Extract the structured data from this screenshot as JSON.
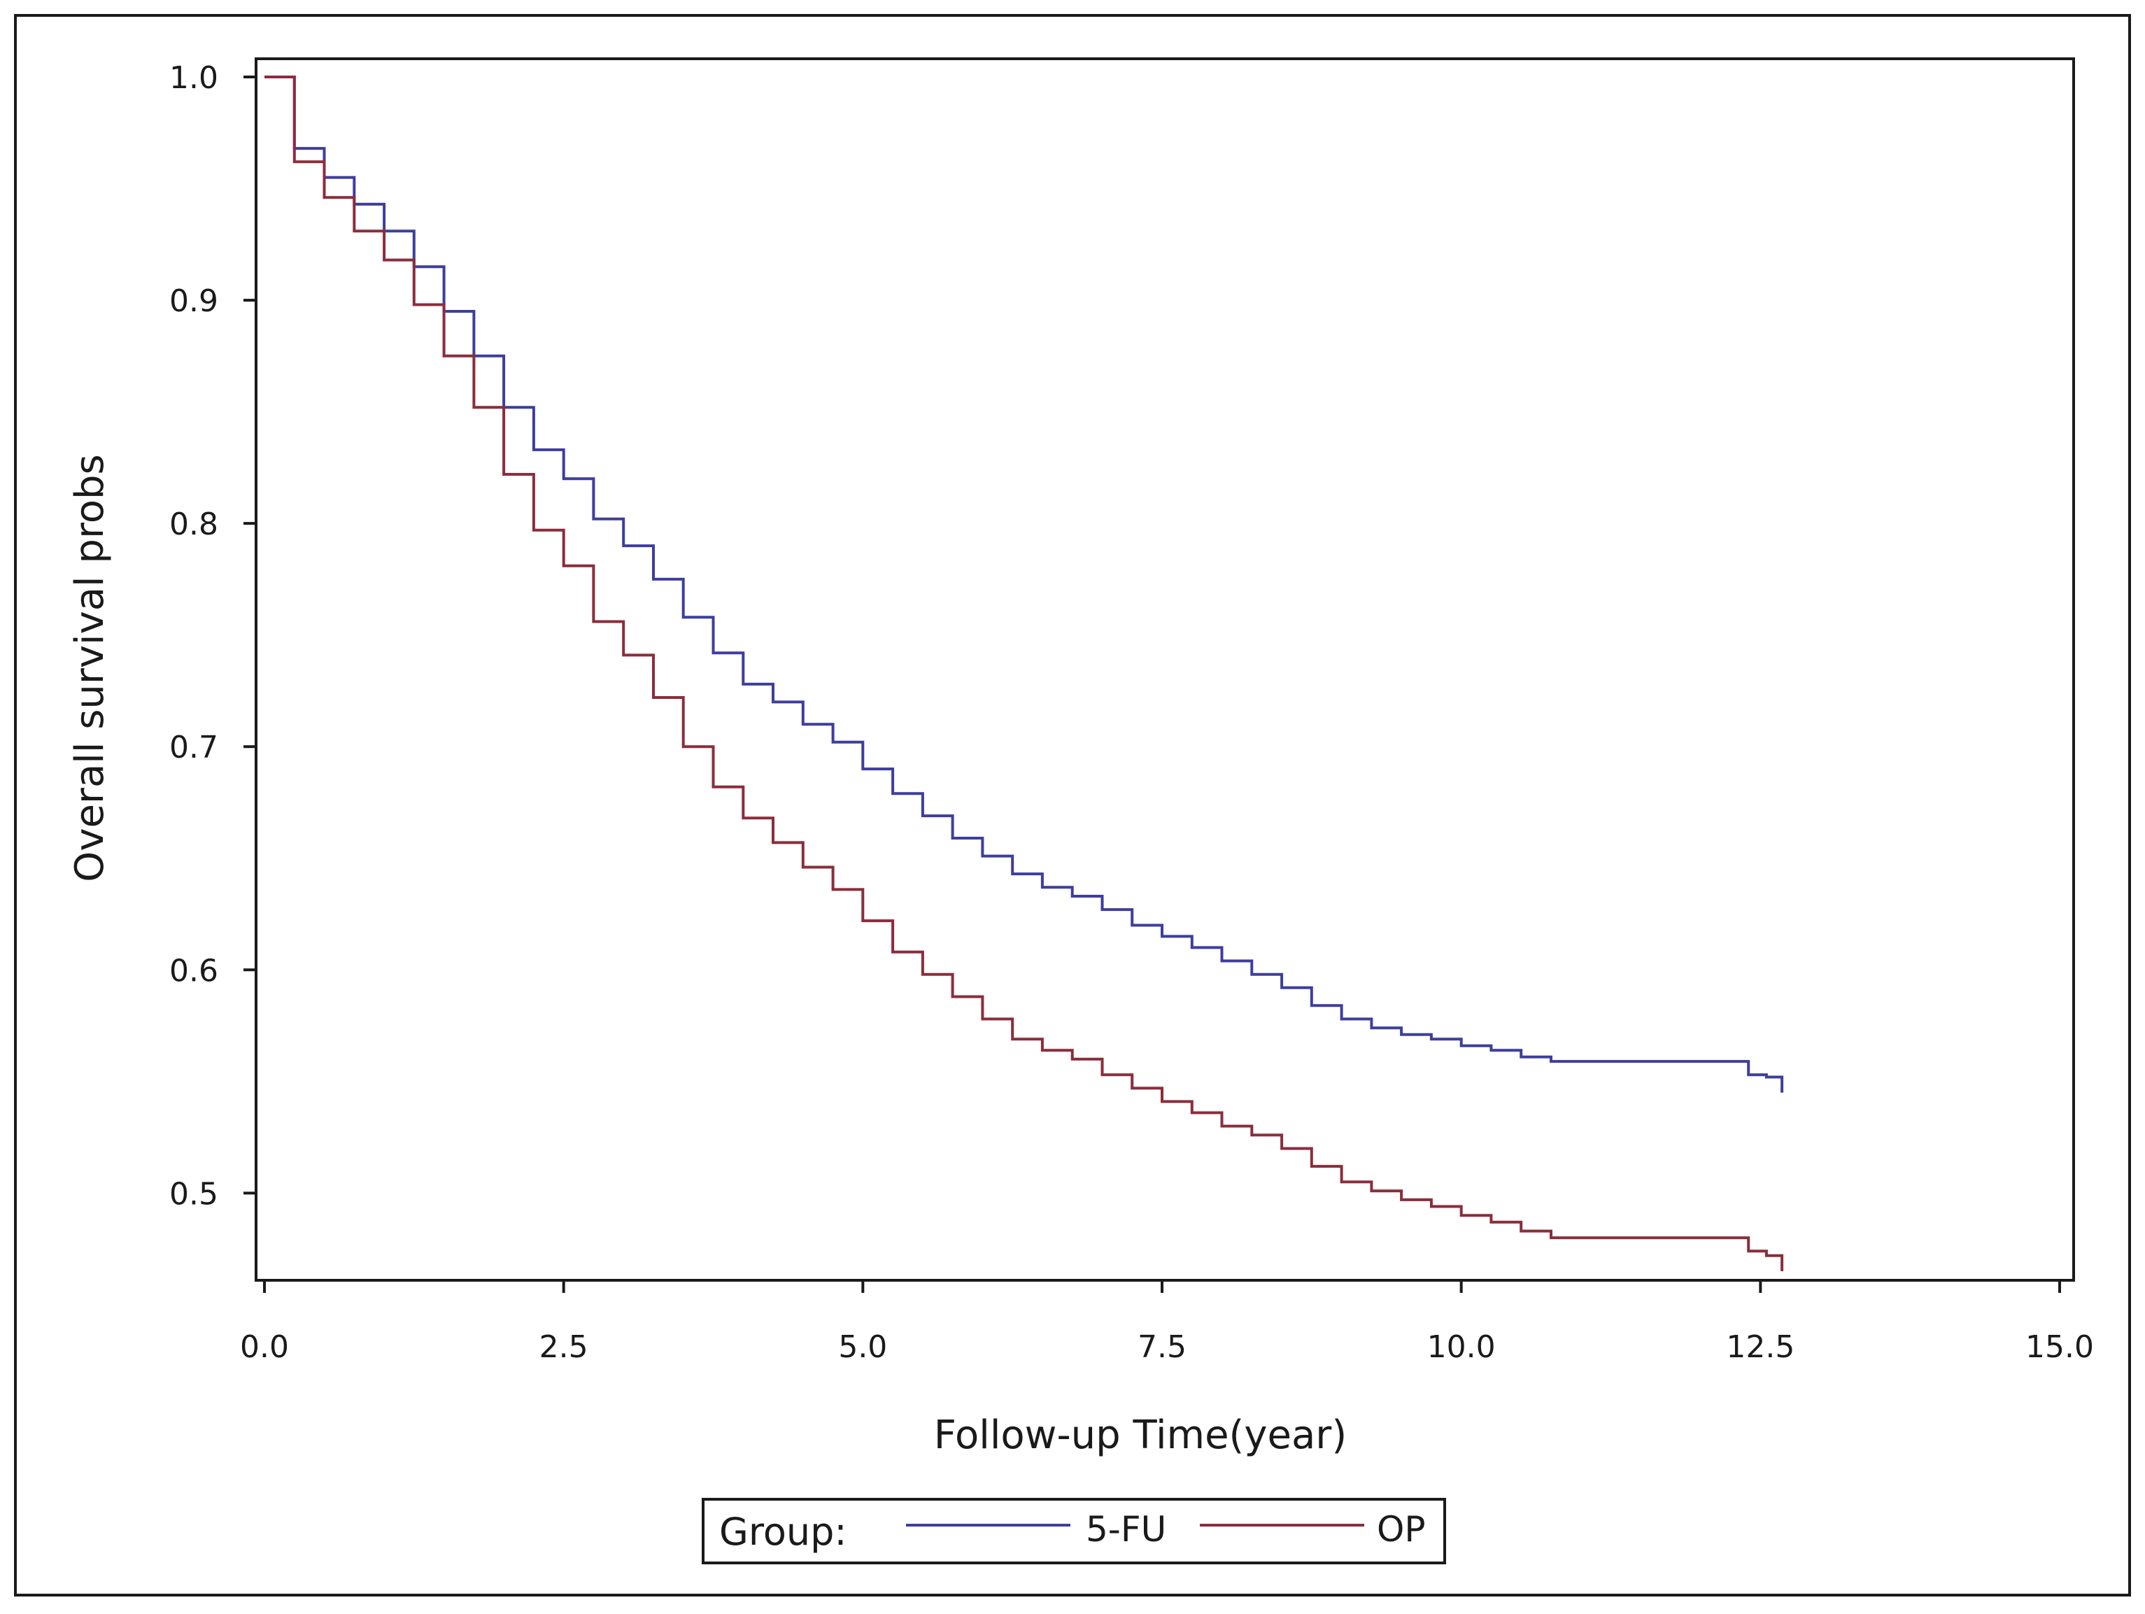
{
  "chart_data": {
    "type": "line",
    "step": true,
    "title": "",
    "xlabel": "Follow-up Time(year)",
    "ylabel": "Overall survival probs",
    "xlim": [
      0,
      15
    ],
    "ylim": [
      0.46,
      1.0
    ],
    "x_ticks": [
      "0.0",
      "2.5",
      "5.0",
      "7.5",
      "10.0",
      "12.5",
      "15.0"
    ],
    "y_ticks": [
      "0.5",
      "0.6",
      "0.7",
      "0.8",
      "0.9",
      "1.0"
    ],
    "grid": false,
    "legend": {
      "title": "Group:",
      "placement": "bottom"
    },
    "series": [
      {
        "name": "5-FU",
        "color": "#3e3e9e",
        "x": [
          0,
          0.25,
          0.5,
          0.75,
          1.0,
          1.25,
          1.5,
          1.75,
          2.0,
          2.25,
          2.5,
          2.75,
          3.0,
          3.25,
          3.5,
          3.75,
          4.0,
          4.25,
          4.5,
          4.75,
          5.0,
          5.25,
          5.5,
          5.75,
          6.0,
          6.25,
          6.5,
          6.75,
          7.0,
          7.25,
          7.5,
          7.75,
          8.0,
          8.25,
          8.5,
          8.75,
          9.0,
          9.25,
          9.5,
          9.75,
          10.0,
          10.25,
          10.5,
          10.75,
          11.0,
          11.5,
          12.0,
          12.4,
          12.55,
          12.68
        ],
        "values": [
          1.0,
          0.968,
          0.955,
          0.943,
          0.931,
          0.915,
          0.895,
          0.875,
          0.852,
          0.833,
          0.82,
          0.802,
          0.79,
          0.775,
          0.758,
          0.742,
          0.728,
          0.72,
          0.71,
          0.702,
          0.69,
          0.679,
          0.669,
          0.659,
          0.651,
          0.643,
          0.637,
          0.633,
          0.627,
          0.62,
          0.615,
          0.61,
          0.604,
          0.598,
          0.592,
          0.584,
          0.578,
          0.574,
          0.571,
          0.569,
          0.566,
          0.564,
          0.561,
          0.559,
          0.559,
          0.559,
          0.559,
          0.553,
          0.552,
          0.545
        ]
      },
      {
        "name": "OP",
        "color": "#8b2d3c",
        "x": [
          0,
          0.25,
          0.5,
          0.75,
          1.0,
          1.25,
          1.5,
          1.75,
          2.0,
          2.25,
          2.5,
          2.75,
          3.0,
          3.25,
          3.5,
          3.75,
          4.0,
          4.25,
          4.5,
          4.75,
          5.0,
          5.25,
          5.5,
          5.75,
          6.0,
          6.25,
          6.5,
          6.75,
          7.0,
          7.25,
          7.5,
          7.75,
          8.0,
          8.25,
          8.5,
          8.75,
          9.0,
          9.25,
          9.5,
          9.75,
          10.0,
          10.25,
          10.5,
          10.75,
          11.0,
          11.5,
          12.0,
          12.4,
          12.55,
          12.68
        ],
        "values": [
          1.0,
          0.962,
          0.946,
          0.931,
          0.918,
          0.898,
          0.875,
          0.852,
          0.822,
          0.797,
          0.781,
          0.756,
          0.741,
          0.722,
          0.7,
          0.682,
          0.668,
          0.657,
          0.646,
          0.636,
          0.622,
          0.608,
          0.598,
          0.588,
          0.578,
          0.569,
          0.564,
          0.56,
          0.553,
          0.547,
          0.541,
          0.536,
          0.53,
          0.526,
          0.52,
          0.512,
          0.505,
          0.501,
          0.497,
          0.494,
          0.49,
          0.487,
          0.483,
          0.48,
          0.48,
          0.48,
          0.48,
          0.474,
          0.472,
          0.465
        ]
      }
    ]
  }
}
